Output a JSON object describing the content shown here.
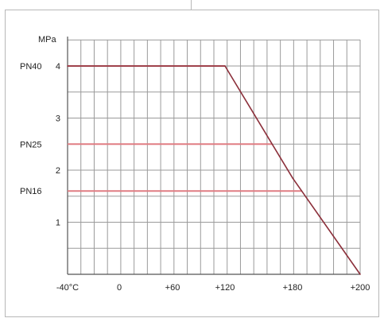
{
  "chart_data": {
    "type": "line",
    "ylabel": "MPa",
    "xlim": [
      -40,
      200
    ],
    "ylim": [
      0,
      4.5
    ],
    "grid": true,
    "x_ticks": [
      {
        "value": -40,
        "label": "-40°C"
      },
      {
        "value": 0,
        "label": "0"
      },
      {
        "value": 60,
        "label": "+60"
      },
      {
        "value": 120,
        "label": "+120"
      },
      {
        "value": 180,
        "label": "+180"
      },
      {
        "value": 200,
        "label": "+200"
      }
    ],
    "y_ticks": [
      {
        "value": 1,
        "label": "1"
      },
      {
        "value": 2,
        "label": "2"
      },
      {
        "value": 3,
        "label": "3"
      },
      {
        "value": 4,
        "label": "4"
      }
    ],
    "pressure_classes": [
      {
        "label": "PN40",
        "value": 4.0
      },
      {
        "label": "PN25",
        "value": 2.5
      },
      {
        "label": "PN16",
        "value": 1.6
      }
    ],
    "series": [
      {
        "x": [
          -40,
          120,
          180,
          200
        ],
        "y": [
          4.0,
          4.0,
          1.85,
          0.0
        ]
      }
    ],
    "colors": {
      "grid": "#9a9a9a",
      "curve": "#8b2f3a",
      "pn_lines": "#e07d83",
      "axis": "#555555"
    }
  }
}
